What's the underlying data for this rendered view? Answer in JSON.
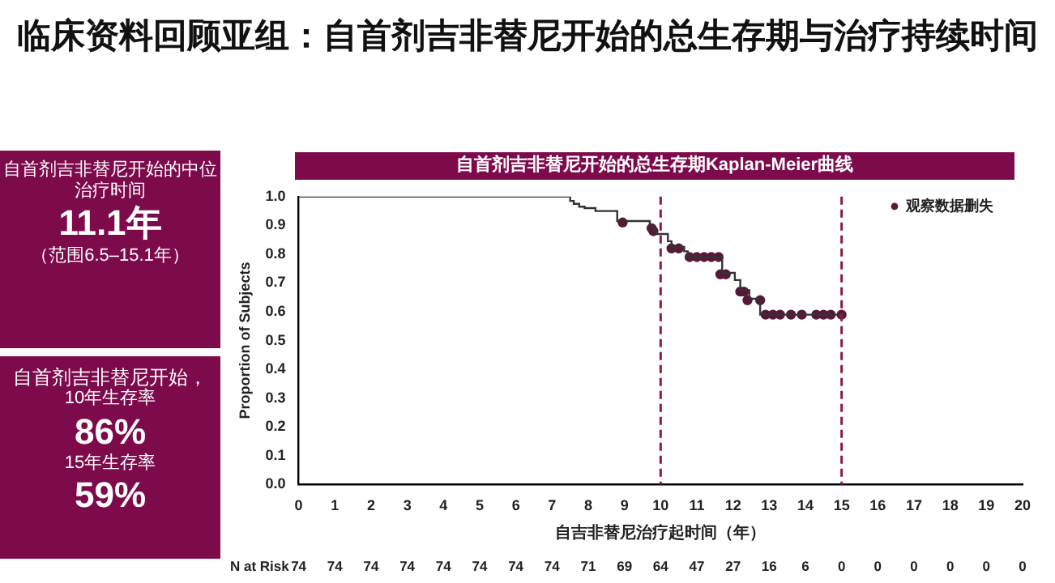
{
  "chart_data": {
    "type": "step",
    "title": "临床资料回顾亚组：自首剂吉非替尼开始的总生存期与治疗持续时间",
    "subtitle": "自首剂吉非替尼开始的总生存期Kaplan-Meier曲线",
    "xlabel": "自吉非替尼治疗起时间（年）",
    "ylabel": "Proportion of Subjects",
    "annotations": [
      "自首剂吉非替尼开始的中位治疗时间",
      "11.1年",
      "（范围6.5–15.1年）",
      "自首剂吉非替尼开始，",
      "10年生存率",
      "86%",
      "15年生存率",
      "59%",
      "N at Risk",
      "74",
      "74",
      "74",
      "74",
      "74",
      "74",
      "74",
      "74",
      "71",
      "69",
      "64",
      "47",
      "27",
      "16",
      "6",
      "0",
      "0",
      "0",
      "0",
      "0",
      "0"
    ],
    "series": [
      {
        "type": "step",
        "color": "#333333",
        "marker": "none",
        "x": [
          0,
          7.5,
          7.6,
          7.75,
          7.9,
          8.2,
          8.8,
          9.7,
          9.8,
          9.9,
          10.2,
          10.3,
          10.65,
          10.75,
          11.7,
          12.05,
          12.2,
          12.45,
          12.75,
          15.1
        ],
        "values": [
          1.0,
          0.985,
          0.975,
          0.965,
          0.96,
          0.95,
          0.915,
          0.9,
          0.88,
          0.87,
          0.845,
          0.825,
          0.81,
          0.79,
          0.735,
          0.71,
          0.675,
          0.645,
          0.59,
          0.59
        ]
      },
      {
        "type": "scatter",
        "name": "观察数据删失",
        "color": "#5a1838",
        "marker": "circle",
        "x": [
          8.95,
          9.75,
          9.8,
          10.3,
          10.5,
          10.8,
          11.0,
          11.2,
          11.4,
          11.6,
          11.65,
          11.8,
          12.2,
          12.3,
          12.4,
          12.75,
          12.9,
          13.1,
          13.3,
          13.6,
          13.9,
          14.3,
          14.5,
          14.7,
          15.0
        ],
        "values": [
          0.91,
          0.89,
          0.88,
          0.82,
          0.82,
          0.79,
          0.79,
          0.79,
          0.79,
          0.79,
          0.73,
          0.73,
          0.67,
          0.67,
          0.64,
          0.64,
          0.59,
          0.59,
          0.59,
          0.59,
          0.59,
          0.59,
          0.59,
          0.59,
          0.59
        ]
      }
    ],
    "ref_lines": [
      {
        "axis": "x",
        "value": 10,
        "color": "#8b1a4a",
        "line_style": "dashed"
      },
      {
        "axis": "x",
        "value": 15,
        "color": "#8b1a4a",
        "line_style": "dashed"
      }
    ],
    "xlim": [
      0,
      20
    ],
    "xticks": [
      0,
      1,
      2,
      3,
      4,
      5,
      6,
      7,
      8,
      9,
      10,
      11,
      12,
      13,
      14,
      15,
      16,
      17,
      18,
      19,
      20
    ],
    "ylim": [
      0,
      1
    ],
    "yticks": [
      {
        "value": 0,
        "label": "0.0"
      },
      0.1,
      0.2,
      0.3,
      0.4,
      0.5,
      0.6,
      0.7,
      0.8,
      0.9,
      {
        "value": 1,
        "label": "1.0"
      }
    ],
    "grid": false,
    "legend": "top right"
  }
}
